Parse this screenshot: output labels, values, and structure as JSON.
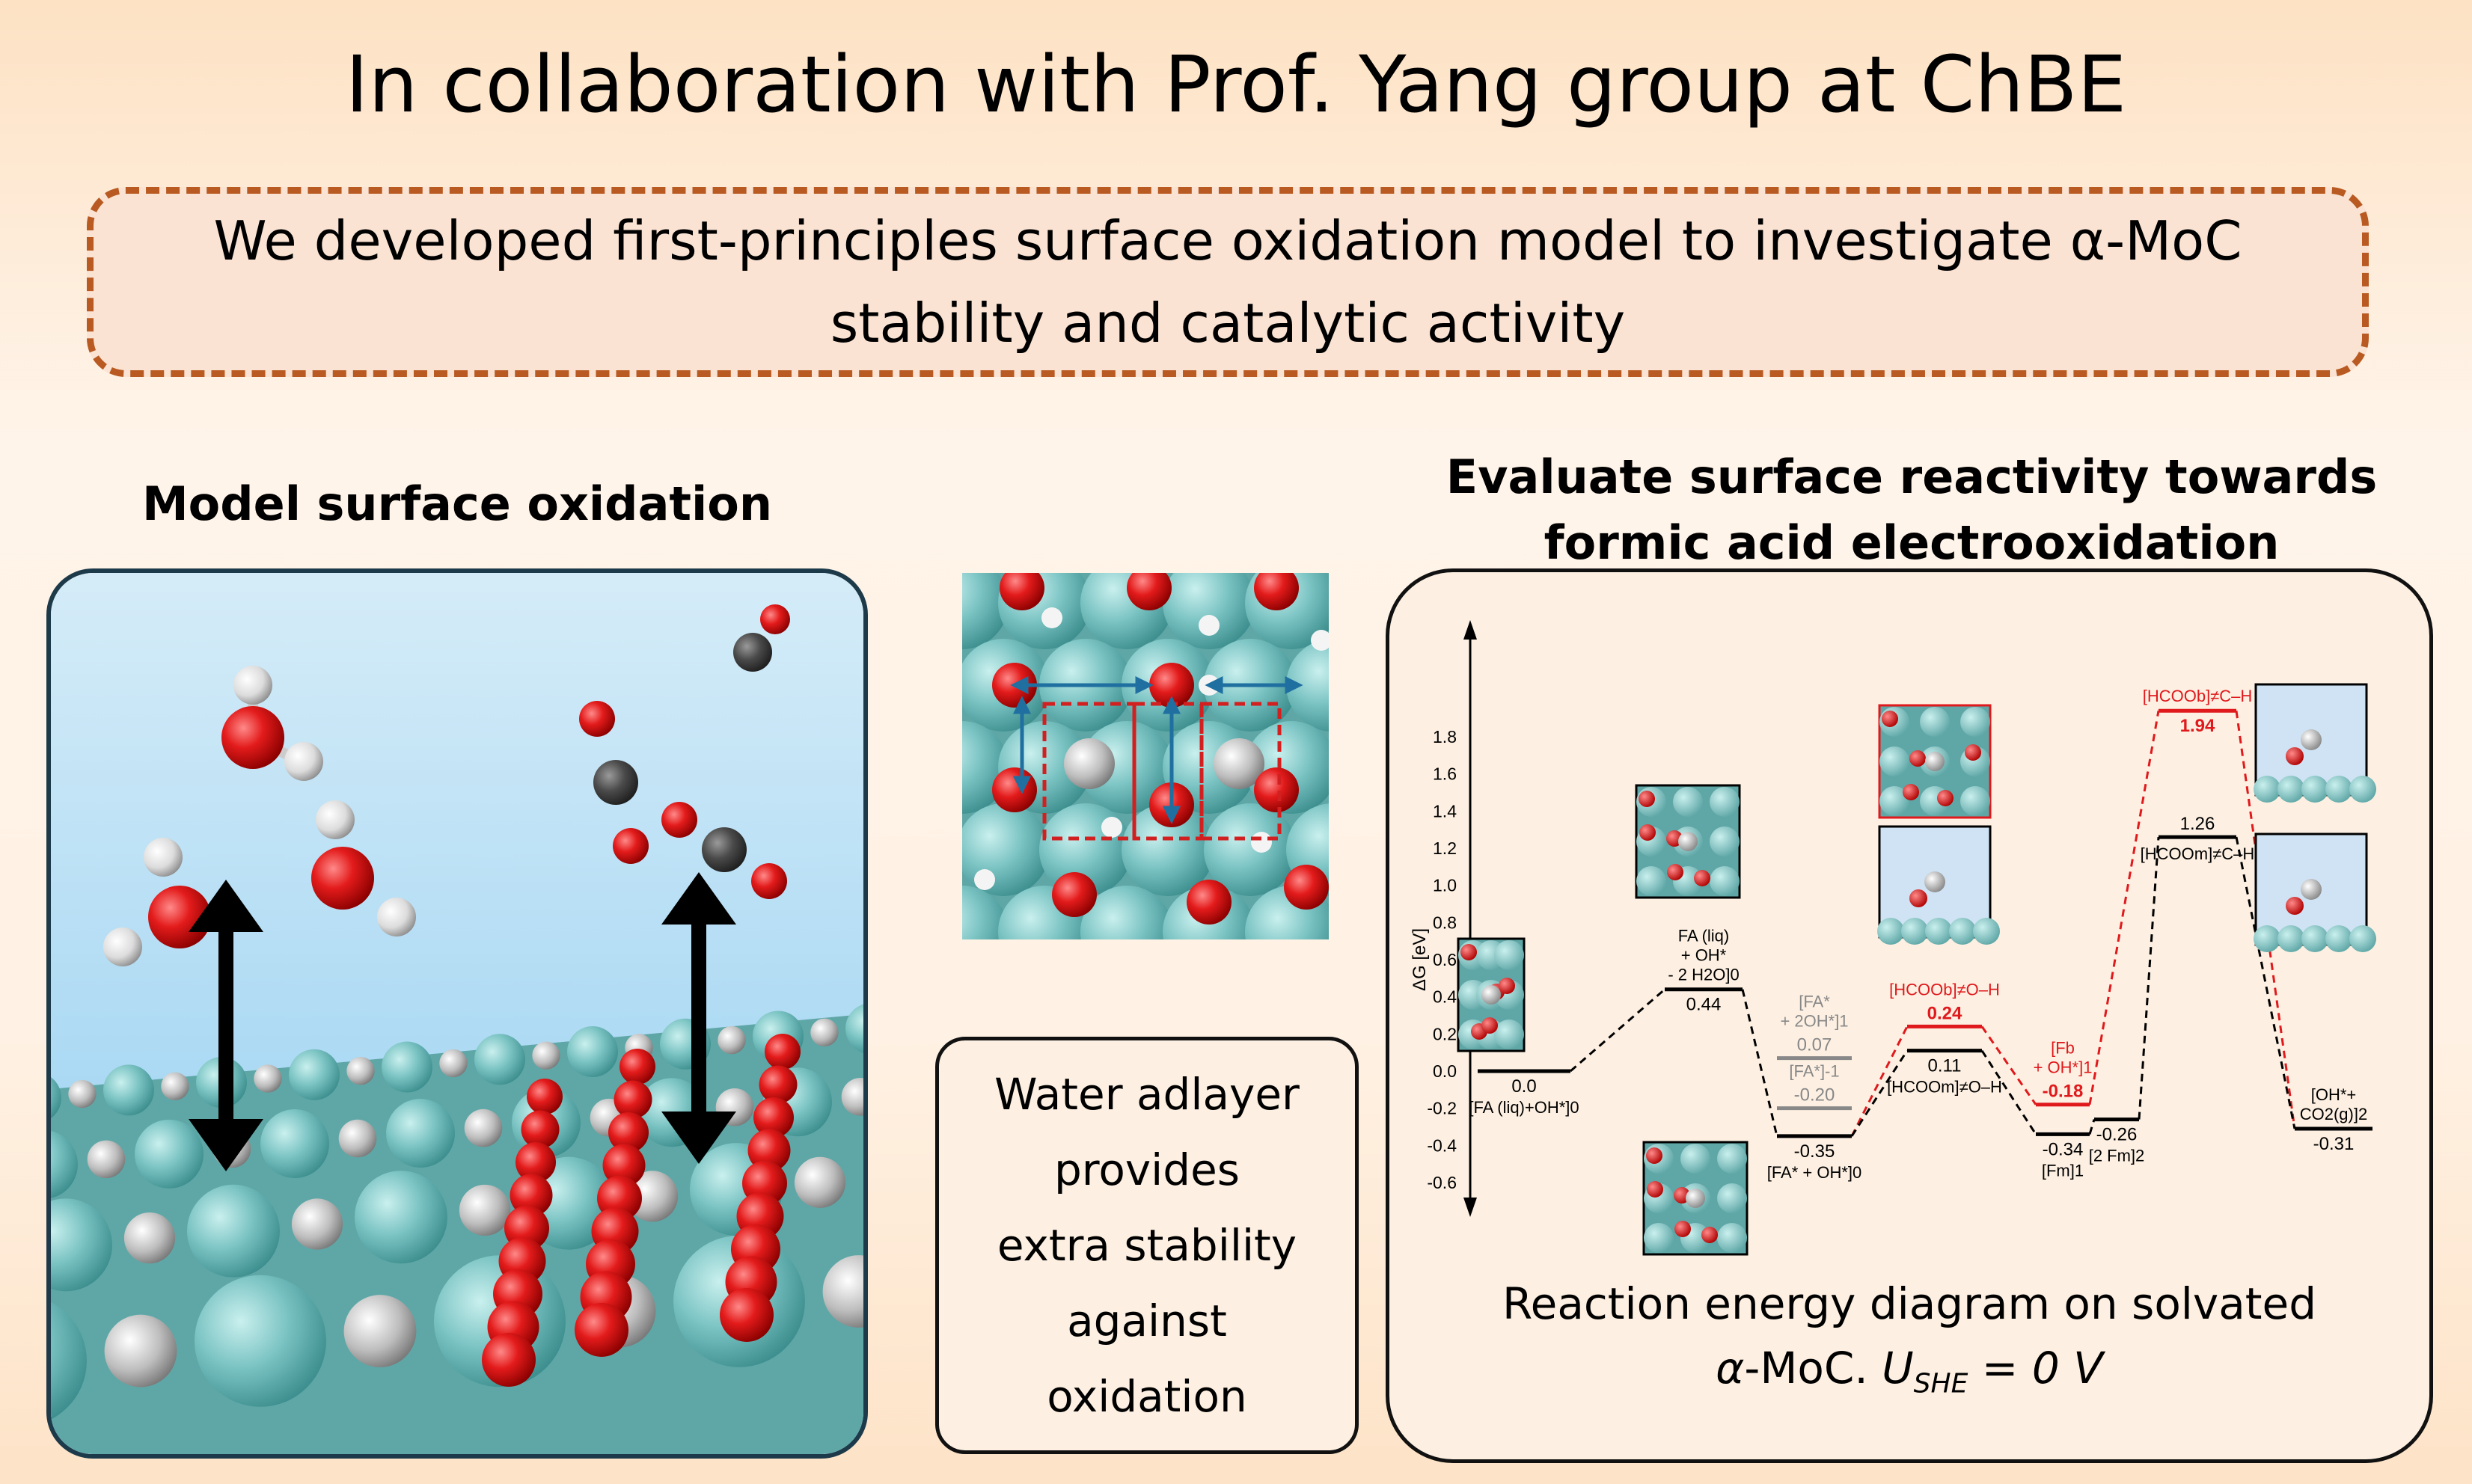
{
  "title": "In collaboration with Prof. Yang group at ChBE",
  "callout": "We developed first-principles surface oxidation model to investigate α-MoC stability and catalytic activity",
  "left_heading": "Model surface oxidation",
  "right_heading": "Evaluate surface reactivity towards formic acid electrooxidation",
  "water_box": "Water adlayer\nprovides\nextra stability\nagainst\noxidation",
  "caption": {
    "line1": "Reaction energy diagram on solvated",
    "alpha": "α",
    "moc": "-MoC. ",
    "u": "U",
    "u_sub": "SHE",
    "eq": " = 0 V"
  },
  "colors": {
    "accent_orange": "#b85a21",
    "panel_border": "#1d3a4a",
    "mo_atom": "#7cc4c4",
    "o_atom": "#e31b1b",
    "c_atom": "#9e9e9e",
    "h_atom": "#f4f4f4",
    "sky": "#a9d8f5",
    "red_path": "#e0191c",
    "gray_path": "#888888",
    "arrow_blue": "#1f6fa0"
  },
  "chart_data": {
    "type": "energy_level_diagram",
    "ylabel": "ΔG [eV]",
    "ylim": [
      -0.7,
      2.0
    ],
    "yticks": [
      "1.8",
      "1.6",
      "1.4",
      "1.2",
      "1.0",
      "0.8",
      "0.6",
      "0.4",
      "0.2",
      "0.0",
      "-0.2",
      "-0.4",
      "-0.6"
    ],
    "ytick_values": [
      1.8,
      1.6,
      1.4,
      1.2,
      1.0,
      0.8,
      0.6,
      0.4,
      0.2,
      0.0,
      -0.2,
      -0.4,
      -0.6
    ],
    "levels": [
      {
        "id": "s0",
        "value": 0.0,
        "value_label": "0.0",
        "label_lines": [
          "[FA (liq)+OH*]0"
        ],
        "color": "#000000"
      },
      {
        "id": "s1",
        "value": 0.44,
        "value_label": "0.44",
        "label_lines": [
          "FA (liq)",
          "+ OH*",
          "- 2 H2O]0"
        ],
        "color": "#000000"
      },
      {
        "id": "s2g",
        "value": 0.07,
        "value_label": "0.07",
        "label_lines": [
          "[FA*",
          "+ 2OH*]1"
        ],
        "color": "#888888"
      },
      {
        "id": "s3g",
        "value": -0.2,
        "value_label": "-0.20",
        "label_lines": [
          "[FA*]-1"
        ],
        "color": "#888888"
      },
      {
        "id": "s4",
        "value": -0.35,
        "value_label": "-0.35",
        "label_lines": [
          "[FA* + OH*]0"
        ],
        "color": "#000000"
      },
      {
        "id": "ts1r",
        "value": 0.24,
        "value_label": "0.24",
        "label_lines": [
          "[HCOOb]≠O–H"
        ],
        "color": "#e0191c"
      },
      {
        "id": "ts1b",
        "value": 0.11,
        "value_label": "0.11",
        "label_lines": [
          "[HCOOm]≠O–H"
        ],
        "color": "#000000"
      },
      {
        "id": "s5r",
        "value": -0.18,
        "value_label": "-0.18",
        "label_lines": [
          "[Fb",
          "+ OH*]1"
        ],
        "color": "#e0191c"
      },
      {
        "id": "s5b",
        "value": -0.34,
        "value_label": "-0.34",
        "label_lines": [
          "[Fm]1"
        ],
        "color": "#000000"
      },
      {
        "id": "s5c",
        "value": -0.26,
        "value_label": "-0.26",
        "label_lines": [
          "[2 Fm]2"
        ],
        "color": "#000000"
      },
      {
        "id": "ts2r",
        "value": 1.94,
        "value_label": "1.94",
        "label_lines": [
          "[HCOOb]≠C–H"
        ],
        "color": "#e0191c"
      },
      {
        "id": "ts2b",
        "value": 1.26,
        "value_label": "1.26",
        "label_lines": [
          "[HCOOm]≠C–H"
        ],
        "color": "#000000"
      },
      {
        "id": "s6",
        "value": -0.31,
        "value_label": "-0.31",
        "label_lines": [
          "[OH*+",
          "CO2(g)]2"
        ],
        "color": "#000000"
      }
    ]
  }
}
